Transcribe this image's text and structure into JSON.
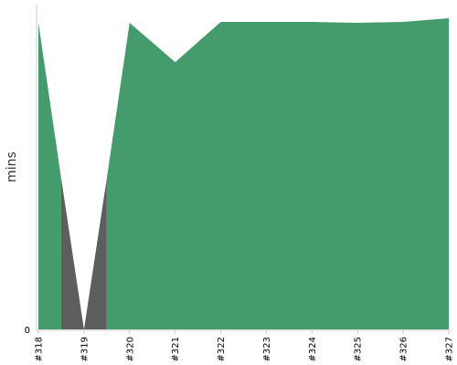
{
  "chart_data": {
    "type": "area",
    "ylabel": "mins",
    "x": [
      "#318",
      "#319",
      "#320",
      "#321",
      "#322",
      "#323",
      "#324",
      "#325",
      "#326",
      "#327"
    ],
    "y_tick_labels": [
      "0"
    ],
    "ylim": [
      0,
      34
    ],
    "stacked": false,
    "series": [
      {
        "color": "#5e5e5e",
        "points": [
          [
            0.5,
            16.5
          ],
          [
            1.0,
            0
          ],
          [
            1.5,
            16.5
          ]
        ]
      },
      {
        "color": "#449c6c",
        "points": [
          [
            0,
            33.5
          ],
          [
            0.5,
            16.5
          ],
          [
            0.5,
            0
          ],
          [
            1.5,
            0
          ],
          [
            1.5,
            16.5
          ],
          [
            2,
            33.5
          ],
          [
            3,
            29.2
          ],
          [
            4,
            33.6
          ],
          [
            5,
            33.6
          ],
          [
            6,
            33.6
          ],
          [
            7,
            33.5
          ],
          [
            8,
            33.6
          ],
          [
            9,
            34.0
          ]
        ]
      }
    ]
  }
}
